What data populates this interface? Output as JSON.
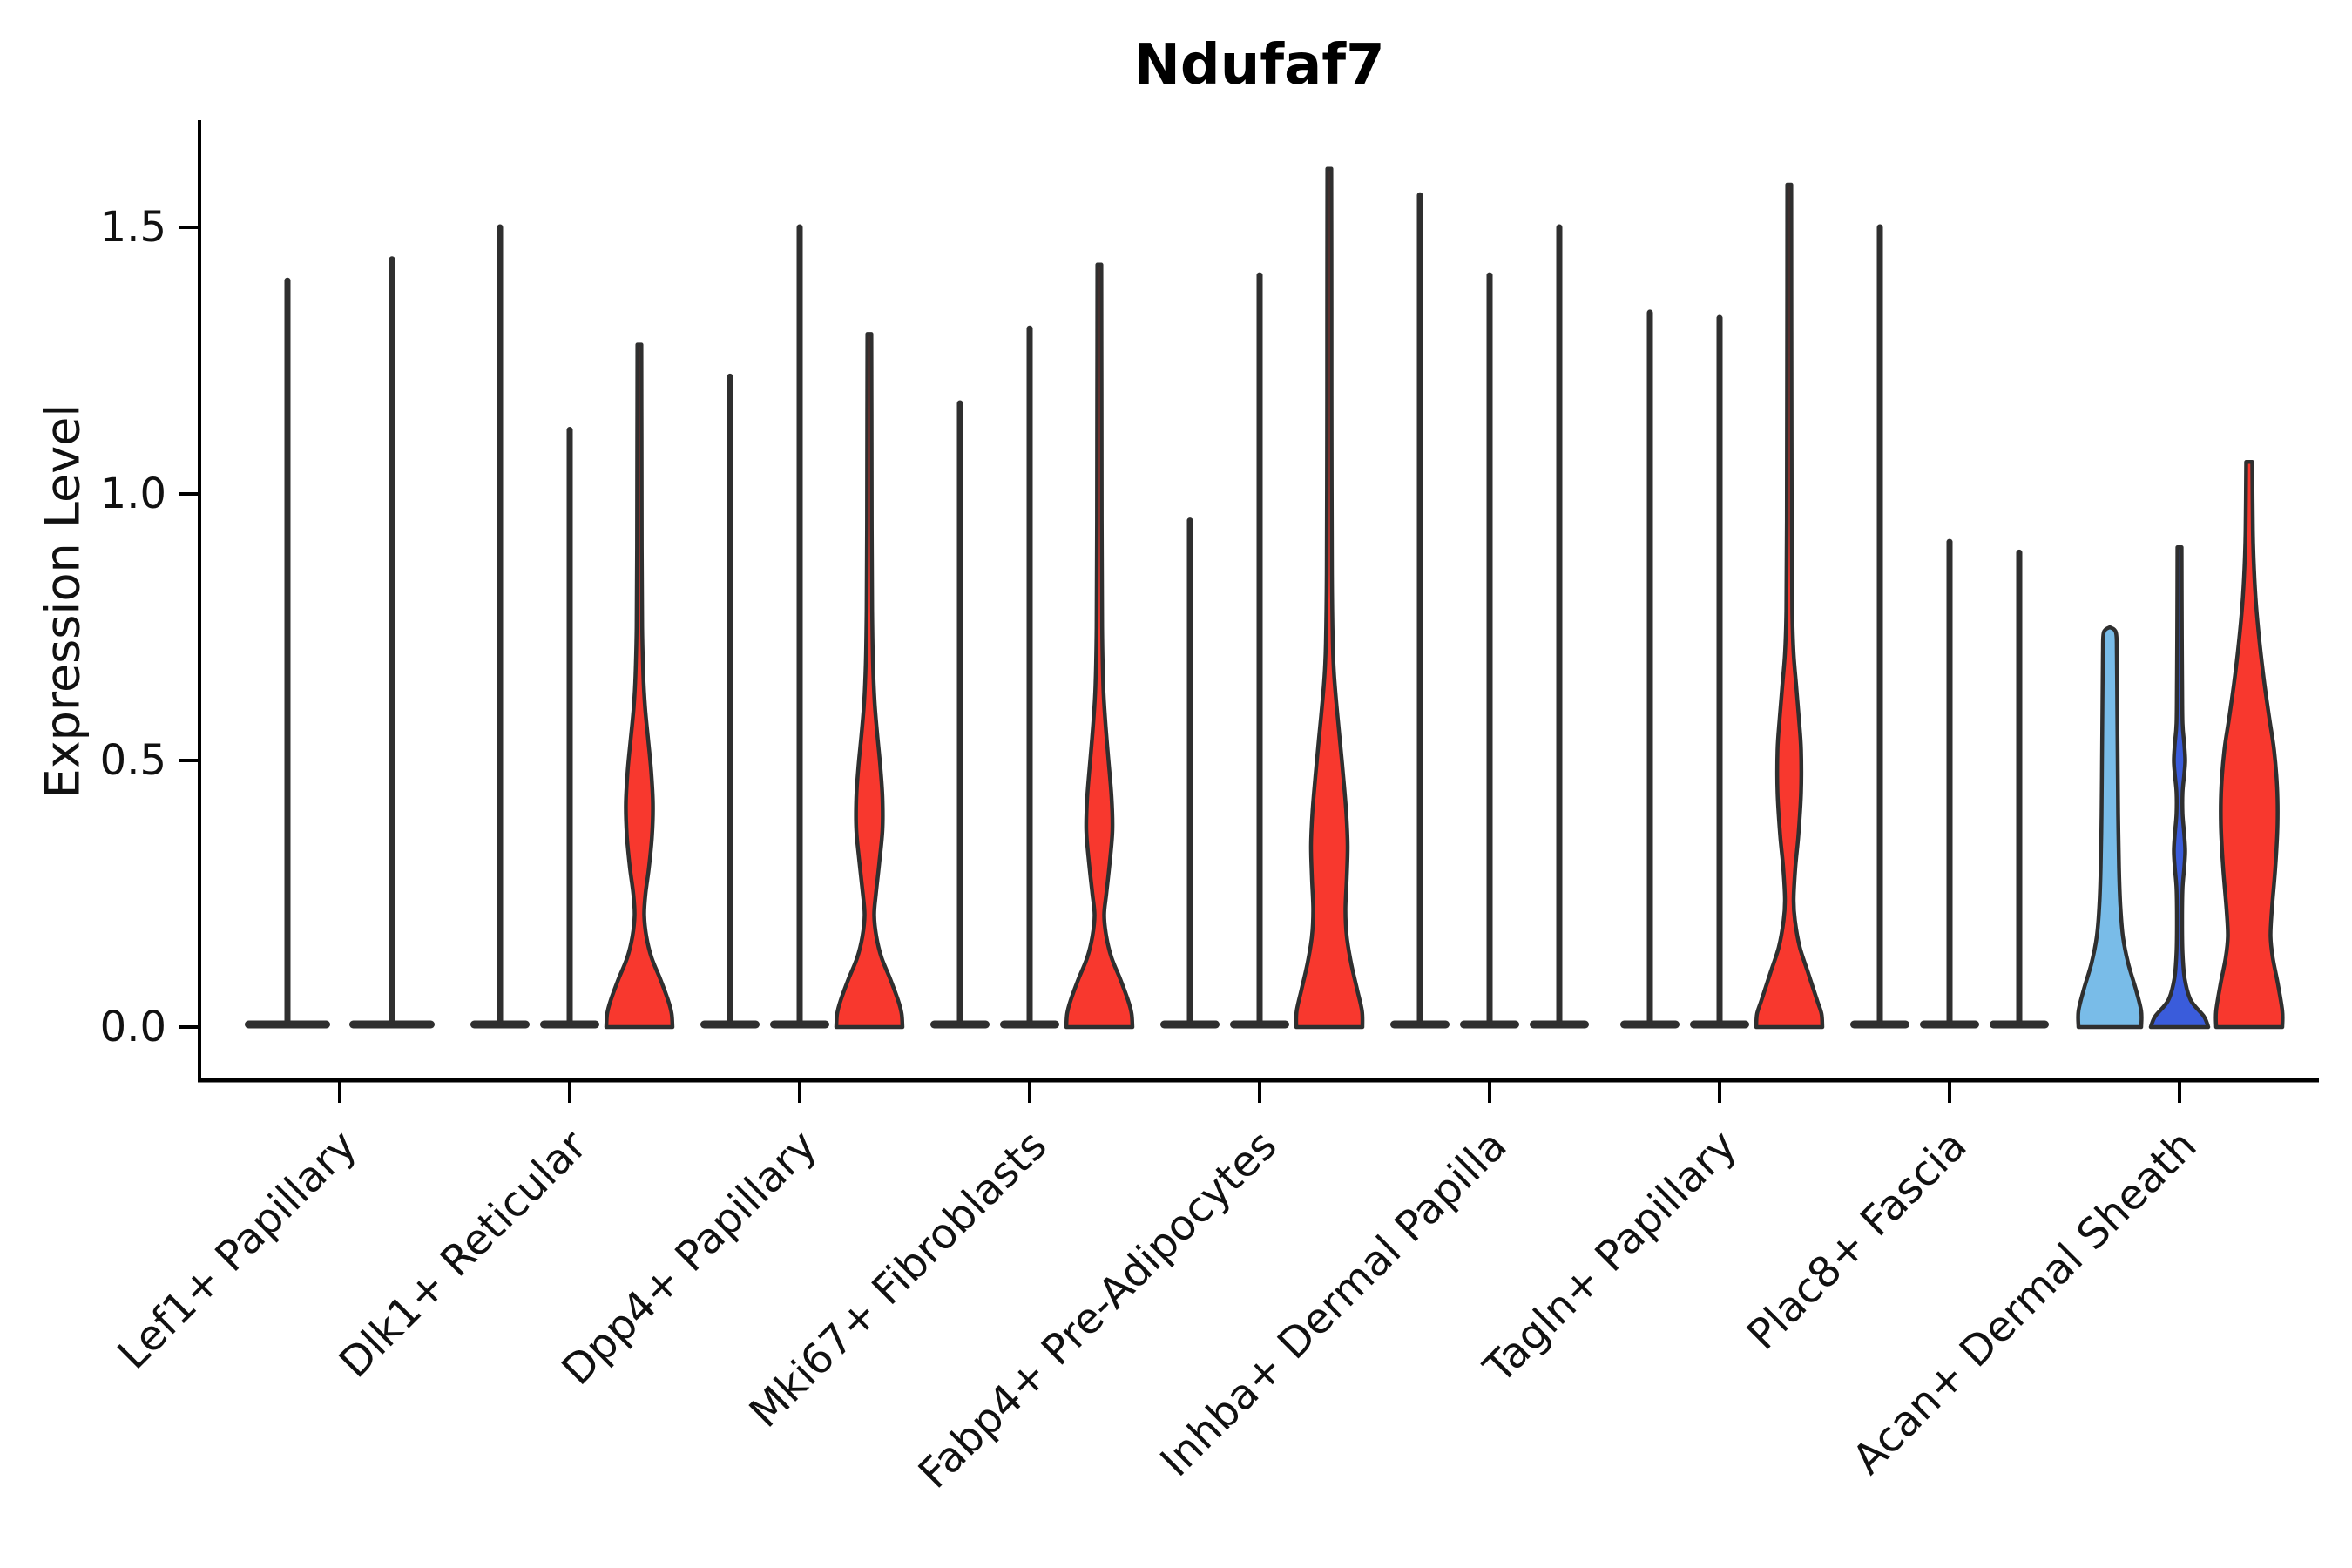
{
  "chart_data": {
    "type": "violin",
    "title": "Ndufaf7",
    "ylabel": "Expression Level",
    "xlabel": "",
    "ylim": [
      -0.1,
      1.7
    ],
    "yticks": [
      "0.0",
      "0.5",
      "1.0",
      "1.5"
    ],
    "ytick_values": [
      0.0,
      0.5,
      1.0,
      1.5
    ],
    "grid": false,
    "legend": "none",
    "colors": {
      "red": "#F8382E",
      "lightblue": "#79BCE8",
      "darkblue": "#3A5CDB",
      "outline": "#2F2F2F",
      "spine": "#000000",
      "text": "#111111"
    },
    "categories": [
      "Lef1+ Papillary",
      "Dlk1+ Reticular",
      "Dpp4+ Papillary",
      "Mki67+ Fibroblasts",
      "Fabp4+ Pre-Adipocytes",
      "Inhba+ Dermal Papilla",
      "Tagln+ Papillary",
      "Plac8+ Fascia",
      "Acan+ Dermal Sheath"
    ],
    "groups": [
      {
        "category": "Lef1+ Papillary",
        "violins": [
          {
            "max": 1.4,
            "color": "none"
          },
          {
            "max": 1.44,
            "color": "none"
          }
        ]
      },
      {
        "category": "Dlk1+ Reticular",
        "violins": [
          {
            "max": 1.5,
            "color": "none"
          },
          {
            "max": 1.12,
            "color": "none"
          },
          {
            "max": 1.28,
            "color": "red",
            "shape": [
              [
                0,
                38
              ],
              [
                0.025,
                37
              ],
              [
                0.05,
                33
              ],
              [
                0.09,
                24
              ],
              [
                0.13,
                14
              ],
              [
                0.17,
                8
              ],
              [
                0.21,
                5.5
              ],
              [
                0.25,
                7
              ],
              [
                0.3,
                11
              ],
              [
                0.36,
                14.5
              ],
              [
                0.42,
                15.5
              ],
              [
                0.48,
                13.5
              ],
              [
                0.54,
                10
              ],
              [
                0.6,
                6.5
              ],
              [
                0.66,
                4.5
              ],
              [
                0.75,
                3.2
              ],
              [
                0.9,
                2.7
              ],
              [
                1.1,
                2.5
              ],
              [
                1.28,
                2.3
              ]
            ]
          }
        ]
      },
      {
        "category": "Dpp4+ Papillary",
        "violins": [
          {
            "max": 1.22,
            "color": "none"
          },
          {
            "max": 1.5,
            "color": "none"
          },
          {
            "max": 1.3,
            "color": "red",
            "shape": [
              [
                0,
                38
              ],
              [
                0.025,
                37
              ],
              [
                0.05,
                33
              ],
              [
                0.09,
                24
              ],
              [
                0.13,
                14
              ],
              [
                0.17,
                8
              ],
              [
                0.21,
                5.5
              ],
              [
                0.25,
                7.5
              ],
              [
                0.31,
                11.5
              ],
              [
                0.37,
                15
              ],
              [
                0.43,
                15
              ],
              [
                0.49,
                12.5
              ],
              [
                0.55,
                9
              ],
              [
                0.61,
                6
              ],
              [
                0.68,
                4.2
              ],
              [
                0.78,
                3.2
              ],
              [
                0.95,
                2.7
              ],
              [
                1.15,
                2.5
              ],
              [
                1.3,
                2.3
              ]
            ]
          }
        ]
      },
      {
        "category": "Mki67+ Fibroblasts",
        "violins": [
          {
            "max": 1.17,
            "color": "none"
          },
          {
            "max": 1.31,
            "color": "none"
          },
          {
            "max": 1.43,
            "color": "red",
            "shape": [
              [
                0,
                38
              ],
              [
                0.025,
                37
              ],
              [
                0.05,
                33
              ],
              [
                0.09,
                24
              ],
              [
                0.13,
                14
              ],
              [
                0.17,
                8
              ],
              [
                0.21,
                5.5
              ],
              [
                0.25,
                8
              ],
              [
                0.31,
                12
              ],
              [
                0.37,
                15
              ],
              [
                0.43,
                14
              ],
              [
                0.5,
                10.5
              ],
              [
                0.57,
                7
              ],
              [
                0.64,
                4.5
              ],
              [
                0.75,
                3.2
              ],
              [
                0.95,
                2.7
              ],
              [
                1.2,
                2.5
              ],
              [
                1.43,
                2.3
              ]
            ]
          }
        ]
      },
      {
        "category": "Fabp4+ Pre-Adipocytes",
        "violins": [
          {
            "max": 0.95,
            "color": "none"
          },
          {
            "max": 1.41,
            "color": "none"
          },
          {
            "max": 1.61,
            "color": "red",
            "shape": [
              [
                0,
                38
              ],
              [
                0.03,
                37.5
              ],
              [
                0.07,
                32
              ],
              [
                0.12,
                25
              ],
              [
                0.17,
                20
              ],
              [
                0.22,
                18.5
              ],
              [
                0.28,
                20
              ],
              [
                0.34,
                21
              ],
              [
                0.4,
                19.5
              ],
              [
                0.47,
                16
              ],
              [
                0.54,
                12
              ],
              [
                0.6,
                8.5
              ],
              [
                0.66,
                5.5
              ],
              [
                0.72,
                4
              ],
              [
                0.85,
                3
              ],
              [
                1.1,
                2.6
              ],
              [
                1.35,
                2.5
              ],
              [
                1.61,
                2.3
              ]
            ]
          }
        ]
      },
      {
        "category": "Inhba+ Dermal Papilla",
        "violins": [
          {
            "max": 1.56,
            "color": "none"
          },
          {
            "max": 1.41,
            "color": "none"
          },
          {
            "max": 1.5,
            "color": "none"
          }
        ]
      },
      {
        "category": "Tagln+ Papillary",
        "violins": [
          {
            "max": 1.34,
            "color": "none"
          },
          {
            "max": 1.33,
            "color": "none"
          },
          {
            "max": 1.58,
            "color": "red",
            "shape": [
              [
                0,
                38
              ],
              [
                0.025,
                37
              ],
              [
                0.05,
                32
              ],
              [
                0.1,
                22
              ],
              [
                0.15,
                12
              ],
              [
                0.2,
                6.5
              ],
              [
                0.24,
                5
              ],
              [
                0.3,
                7
              ],
              [
                0.36,
                10.5
              ],
              [
                0.44,
                13.5
              ],
              [
                0.52,
                13.5
              ],
              [
                0.58,
                11
              ],
              [
                0.64,
                8
              ],
              [
                0.7,
                5
              ],
              [
                0.78,
                3.4
              ],
              [
                0.95,
                2.8
              ],
              [
                1.25,
                2.5
              ],
              [
                1.58,
                2.3
              ]
            ]
          }
        ]
      },
      {
        "category": "Plac8+ Fascia",
        "violins": [
          {
            "max": 1.5,
            "color": "none"
          },
          {
            "max": 0.91,
            "color": "none"
          },
          {
            "max": 0.89,
            "color": "none"
          }
        ]
      },
      {
        "category": "Acan+ Dermal Sheath",
        "violins": [
          {
            "max": 0.75,
            "color": "lightblue",
            "shape": [
              [
                0,
                36
              ],
              [
                0.03,
                36
              ],
              [
                0.07,
                30
              ],
              [
                0.12,
                21
              ],
              [
                0.17,
                15
              ],
              [
                0.23,
                12
              ],
              [
                0.3,
                10.5
              ],
              [
                0.4,
                9.5
              ],
              [
                0.5,
                9
              ],
              [
                0.6,
                8.5
              ],
              [
                0.7,
                8
              ],
              [
                0.74,
                7
              ],
              [
                0.75,
                0
              ]
            ]
          },
          {
            "max": 0.9,
            "color": "darkblue",
            "shape": [
              [
                0,
                33
              ],
              [
                0.02,
                28
              ],
              [
                0.05,
                13
              ],
              [
                0.09,
                6
              ],
              [
                0.14,
                3.5
              ],
              [
                0.2,
                3
              ],
              [
                0.26,
                3.5
              ],
              [
                0.3,
                5.5
              ],
              [
                0.33,
                6.5
              ],
              [
                0.36,
                5.5
              ],
              [
                0.4,
                3.5
              ],
              [
                0.44,
                3.5
              ],
              [
                0.475,
                5.5
              ],
              [
                0.5,
                6.5
              ],
              [
                0.53,
                5.5
              ],
              [
                0.57,
                3.5
              ],
              [
                0.65,
                3
              ],
              [
                0.78,
                2.6
              ],
              [
                0.9,
                2.4
              ]
            ],
            "bulge_levels": [
              0.32,
              0.5
            ]
          },
          {
            "max": 1.06,
            "color": "red",
            "shape": [
              [
                0,
                38
              ],
              [
                0.03,
                38
              ],
              [
                0.08,
                33
              ],
              [
                0.13,
                27
              ],
              [
                0.17,
                24.5
              ],
              [
                0.22,
                26
              ],
              [
                0.3,
                30
              ],
              [
                0.38,
                32.5
              ],
              [
                0.45,
                32
              ],
              [
                0.52,
                28.5
              ],
              [
                0.58,
                23
              ],
              [
                0.65,
                17
              ],
              [
                0.72,
                12
              ],
              [
                0.79,
                8
              ],
              [
                0.86,
                5.5
              ],
              [
                0.93,
                4.2
              ],
              [
                1.06,
                3.5
              ]
            ]
          }
        ]
      }
    ]
  }
}
